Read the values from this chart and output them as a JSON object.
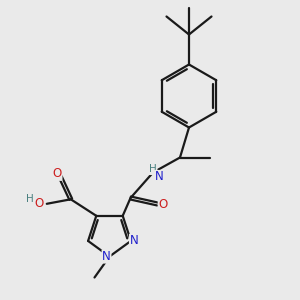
{
  "bg_color": "#eaeaea",
  "atom_colors": {
    "C": "#1a1a1a",
    "N": "#2020cc",
    "O": "#cc2020",
    "H": "#4a8080"
  },
  "bond_color": "#1a1a1a",
  "bond_width": 1.6,
  "font_size": 8.5
}
